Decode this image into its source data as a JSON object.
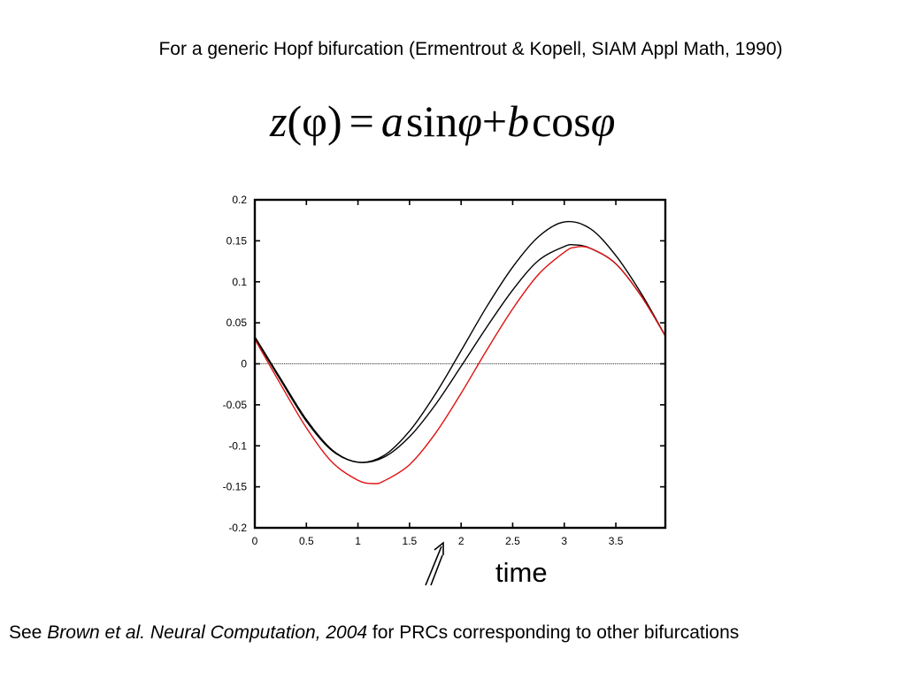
{
  "slide": {
    "header": "For a generic Hopf bifurcation (Ermentrout & Kopell, SIAM Appl Math, 1990)",
    "equation": {
      "lhs_var": "z",
      "lhs_arg": "(φ)",
      "equals": "=",
      "a": "a",
      "sin": "sin",
      "phi1": "φ",
      "plus": "+",
      "b": "b",
      "cos": "cos",
      "phi2": "φ"
    },
    "footer": {
      "prefix": "See ",
      "citation": "Brown et al. Neural Computation, 2004",
      "suffix": " for PRCs corresponding to other bifurcations"
    },
    "time_label": "time"
  },
  "colors": {
    "black_curve": "#000000",
    "red_curve": "#e01010",
    "axis": "#000000"
  },
  "chart_data": {
    "type": "line",
    "xlim": [
      0,
      3.98
    ],
    "ylim": [
      -0.2,
      0.2
    ],
    "x_ticks": [
      0,
      0.5,
      1,
      1.5,
      2,
      2.5,
      3,
      3.5
    ],
    "x_tick_labels": [
      "0",
      "0.5",
      "1",
      "1.5",
      "2",
      "2.5",
      "3",
      "3.5"
    ],
    "y_ticks": [
      0.2,
      0.15,
      0.1,
      0.05,
      0,
      -0.05,
      -0.1,
      -0.15,
      -0.2
    ],
    "y_tick_labels": [
      "0.2",
      "0.15",
      "0.1",
      "0.05",
      "0",
      "-0.05",
      "-0.1",
      "-0.15",
      "-0.2"
    ],
    "zero_line": true,
    "series": [
      {
        "color": "#000000",
        "points": [
          [
            0,
            0.033
          ],
          [
            0.25,
            -0.018
          ],
          [
            0.5,
            -0.068
          ],
          [
            0.75,
            -0.105
          ],
          [
            1.0,
            -0.12
          ],
          [
            1.25,
            -0.112
          ],
          [
            1.5,
            -0.082
          ],
          [
            1.75,
            -0.037
          ],
          [
            2.0,
            0.016
          ],
          [
            2.25,
            0.07
          ],
          [
            2.5,
            0.118
          ],
          [
            2.75,
            0.155
          ],
          [
            3.0,
            0.173
          ],
          [
            3.25,
            0.165
          ],
          [
            3.5,
            0.132
          ],
          [
            3.75,
            0.085
          ],
          [
            3.98,
            0.034
          ]
        ]
      },
      {
        "color": "#000000",
        "points": [
          [
            0,
            0.032
          ],
          [
            0.25,
            -0.02
          ],
          [
            0.5,
            -0.07
          ],
          [
            0.75,
            -0.106
          ],
          [
            1.0,
            -0.12
          ],
          [
            1.25,
            -0.114
          ],
          [
            1.5,
            -0.089
          ],
          [
            1.75,
            -0.05
          ],
          [
            2.0,
            -0.003
          ],
          [
            2.25,
            0.045
          ],
          [
            2.5,
            0.09
          ],
          [
            2.75,
            0.126
          ],
          [
            3.0,
            0.143
          ],
          [
            3.1,
            0.145
          ],
          [
            3.25,
            0.141
          ],
          [
            3.5,
            0.122
          ],
          [
            3.75,
            0.082
          ],
          [
            3.98,
            0.034
          ]
        ]
      },
      {
        "color": "#e01010",
        "points": [
          [
            0,
            0.03
          ],
          [
            0.25,
            -0.025
          ],
          [
            0.5,
            -0.078
          ],
          [
            0.75,
            -0.12
          ],
          [
            1.0,
            -0.142
          ],
          [
            1.15,
            -0.146
          ],
          [
            1.25,
            -0.143
          ],
          [
            1.5,
            -0.123
          ],
          [
            1.75,
            -0.085
          ],
          [
            2.0,
            -0.036
          ],
          [
            2.25,
            0.017
          ],
          [
            2.5,
            0.067
          ],
          [
            2.75,
            0.109
          ],
          [
            3.0,
            0.136
          ],
          [
            3.1,
            0.142
          ],
          [
            3.25,
            0.141
          ],
          [
            3.5,
            0.122
          ],
          [
            3.75,
            0.082
          ],
          [
            3.98,
            0.034
          ]
        ]
      }
    ]
  }
}
